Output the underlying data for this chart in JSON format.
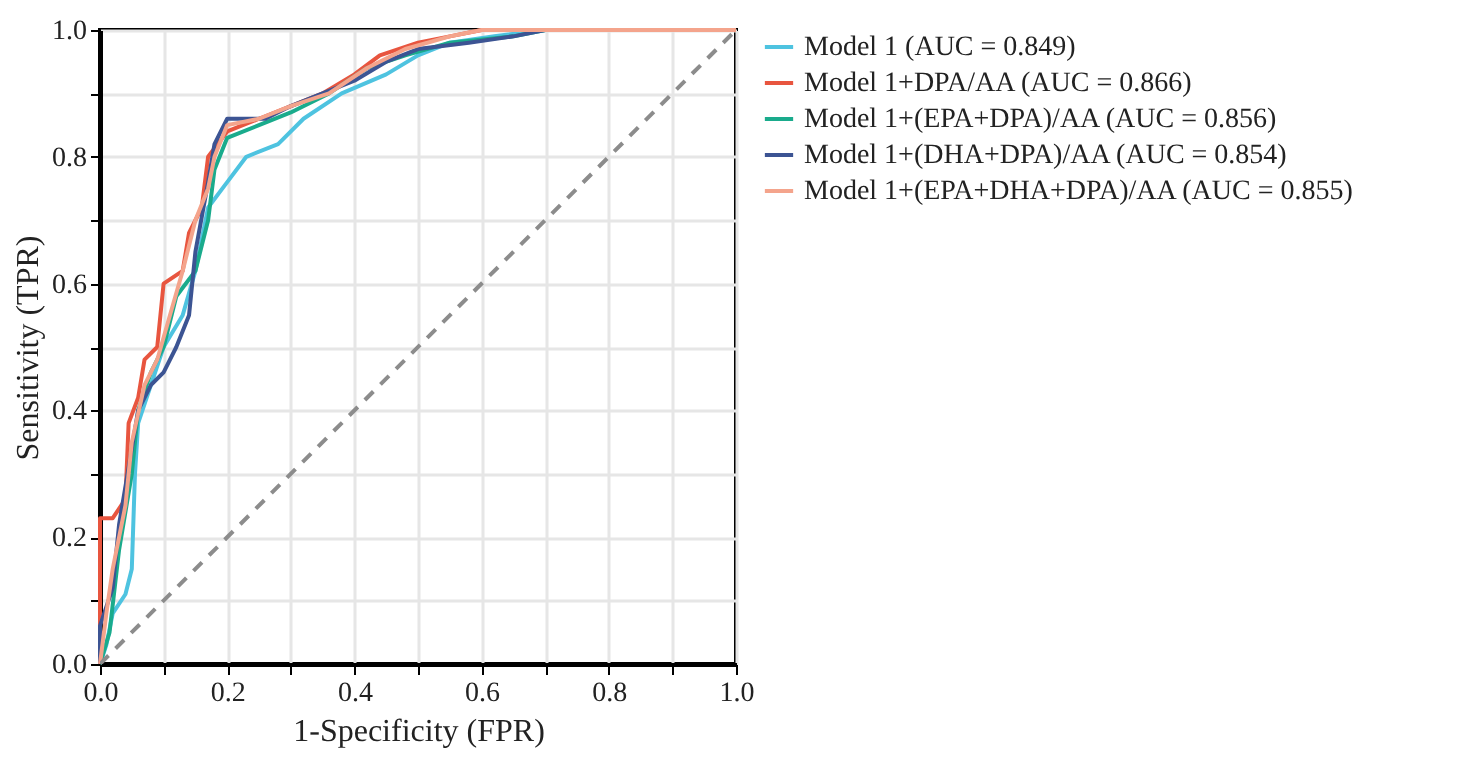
{
  "chart_data": {
    "type": "line",
    "xlabel": "1-Specificity (FPR)",
    "ylabel": "Sensitivity (TPR)",
    "xlim": [
      0,
      1
    ],
    "ylim": [
      0,
      1
    ],
    "xticks": [
      {
        "value": 0,
        "label": "0.0"
      },
      {
        "value": 0.1,
        "label": null
      },
      {
        "value": 0.2,
        "label": "0.2"
      },
      {
        "value": 0.3,
        "label": null
      },
      {
        "value": 0.4,
        "label": "0.4"
      },
      {
        "value": 0.5,
        "label": null
      },
      {
        "value": 0.6,
        "label": "0.6"
      },
      {
        "value": 0.7,
        "label": null
      },
      {
        "value": 0.8,
        "label": "0.8"
      },
      {
        "value": 0.9,
        "label": null
      },
      {
        "value": 1,
        "label": "1.0"
      }
    ],
    "yticks": [
      {
        "value": 0,
        "label": "0.0"
      },
      {
        "value": 0.1,
        "label": null
      },
      {
        "value": 0.2,
        "label": "0.2"
      },
      {
        "value": 0.3,
        "label": null
      },
      {
        "value": 0.4,
        "label": "0.4"
      },
      {
        "value": 0.5,
        "label": null
      },
      {
        "value": 0.6,
        "label": "0.6"
      },
      {
        "value": 0.7,
        "label": null
      },
      {
        "value": 0.8,
        "label": "0.8"
      },
      {
        "value": 0.9,
        "label": null
      },
      {
        "value": 1,
        "label": "1.0"
      }
    ],
    "grid": true,
    "legend": "right",
    "series": [
      {
        "name": "Model 1 (AUC = 0.849)",
        "color": "#4ec3e0",
        "x": [
          0,
          0.01,
          0.02,
          0.04,
          0.05,
          0.055,
          0.06,
          0.08,
          0.1,
          0.13,
          0.15,
          0.17,
          0.2,
          0.23,
          0.28,
          0.32,
          0.38,
          0.45,
          0.5,
          0.55,
          0.62,
          0.7,
          1
        ],
        "values": [
          0,
          0.03,
          0.08,
          0.11,
          0.15,
          0.3,
          0.38,
          0.44,
          0.5,
          0.55,
          0.62,
          0.72,
          0.76,
          0.8,
          0.82,
          0.86,
          0.9,
          0.93,
          0.96,
          0.98,
          0.99,
          1,
          1
        ]
      },
      {
        "name": "Model 1+DPA/AA (AUC = 0.866)",
        "color": "#e8553f",
        "x": [
          0,
          0,
          0.02,
          0.04,
          0.045,
          0.06,
          0.07,
          0.09,
          0.1,
          0.13,
          0.14,
          0.16,
          0.17,
          0.2,
          0.25,
          0.3,
          0.35,
          0.4,
          0.44,
          0.5,
          0.55,
          0.6,
          1
        ],
        "values": [
          0,
          0.23,
          0.23,
          0.26,
          0.38,
          0.42,
          0.48,
          0.5,
          0.6,
          0.62,
          0.68,
          0.72,
          0.8,
          0.84,
          0.86,
          0.88,
          0.9,
          0.93,
          0.96,
          0.98,
          0.99,
          1,
          1
        ]
      },
      {
        "name": "Model 1+(EPA+DPA)/AA (AUC = 0.856)",
        "color": "#1aab8c",
        "x": [
          0,
          0.015,
          0.03,
          0.05,
          0.06,
          0.08,
          0.1,
          0.12,
          0.15,
          0.17,
          0.18,
          0.2,
          0.25,
          0.3,
          0.36,
          0.42,
          0.48,
          0.55,
          0.65,
          0.7,
          1
        ],
        "values": [
          0,
          0.05,
          0.18,
          0.3,
          0.4,
          0.46,
          0.5,
          0.58,
          0.62,
          0.7,
          0.78,
          0.83,
          0.85,
          0.87,
          0.9,
          0.94,
          0.96,
          0.98,
          0.99,
          1,
          1
        ]
      },
      {
        "name": "Model 1+(DHA+DPA)/AA (AUC = 0.854)",
        "color": "#3c5493",
        "x": [
          0,
          0,
          0.02,
          0.03,
          0.04,
          0.06,
          0.08,
          0.1,
          0.12,
          0.14,
          0.15,
          0.17,
          0.18,
          0.2,
          0.26,
          0.3,
          0.35,
          0.4,
          0.45,
          0.5,
          0.58,
          0.65,
          0.7,
          1
        ],
        "values": [
          0,
          0.06,
          0.12,
          0.22,
          0.28,
          0.4,
          0.44,
          0.46,
          0.5,
          0.55,
          0.65,
          0.76,
          0.82,
          0.86,
          0.86,
          0.88,
          0.9,
          0.92,
          0.95,
          0.97,
          0.98,
          0.99,
          1,
          1
        ]
      },
      {
        "name": "Model 1+(EPA+DHA+DPA)/AA (AUC = 0.855)",
        "color": "#f4a48c",
        "x": [
          0,
          0.01,
          0.02,
          0.04,
          0.05,
          0.07,
          0.09,
          0.11,
          0.13,
          0.15,
          0.17,
          0.18,
          0.2,
          0.25,
          0.3,
          0.36,
          0.42,
          0.48,
          0.55,
          0.6,
          1
        ],
        "values": [
          0,
          0.08,
          0.15,
          0.25,
          0.35,
          0.44,
          0.48,
          0.55,
          0.62,
          0.7,
          0.75,
          0.8,
          0.85,
          0.86,
          0.88,
          0.9,
          0.94,
          0.97,
          0.99,
          1,
          1
        ]
      },
      {
        "color": "#8c8c8c",
        "line_style": "dashed",
        "x": [
          0,
          1
        ],
        "values": [
          0,
          1
        ]
      }
    ]
  }
}
